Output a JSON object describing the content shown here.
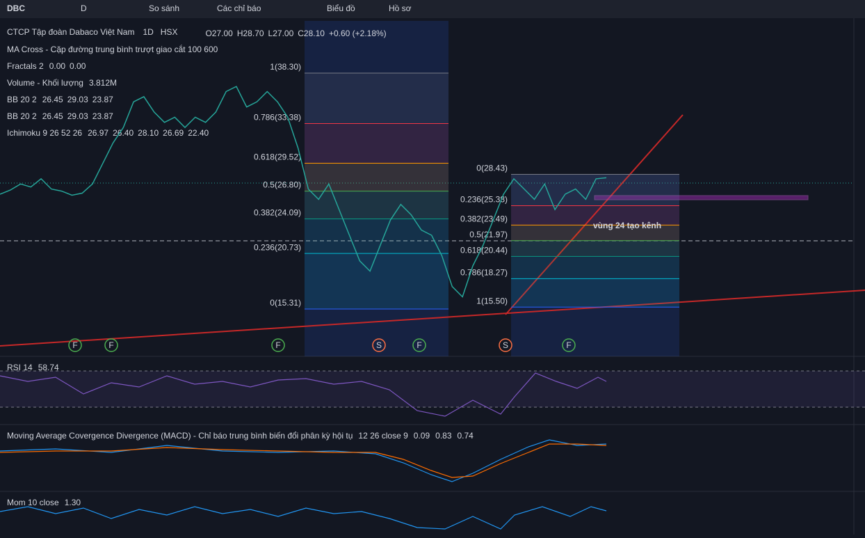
{
  "toolbar": {
    "symbol": "DBC",
    "interval": "D",
    "compare": "So sánh",
    "indicators": "Các chỉ báo",
    "chart": "Biểu đồ",
    "profile": "Hồ sơ"
  },
  "legend": {
    "name": "CTCP Tập đoàn Dabaco Việt Nam",
    "interval": "1D",
    "exchange": "HSX",
    "open": "O27.00",
    "high": "H28.70",
    "low": "L27.00",
    "close": "C28.10",
    "change": "+0.60 (+2.18%)"
  },
  "indicators": [
    {
      "name": "MA Cross - Cặp đường trung bình trượt giao cắt 100 600"
    },
    {
      "name": "Fractals 2",
      "values": [
        {
          "text": "0.00",
          "color": "#f23645"
        },
        {
          "text": "0.00",
          "color": "#089981"
        }
      ]
    },
    {
      "name": "Volume - Khối lượng",
      "values": [
        {
          "text": "3.812M",
          "color": "#26a69a"
        }
      ]
    },
    {
      "name": "BB 20 2",
      "values": [
        {
          "text": "26.45",
          "color": "#ff9800"
        },
        {
          "text": "29.03",
          "color": "#2962ff"
        },
        {
          "text": "23.87",
          "color": "#2962ff"
        }
      ]
    },
    {
      "name": "BB 20 2",
      "values": [
        {
          "text": "26.45",
          "color": "#ffeb3b"
        },
        {
          "text": "29.03",
          "color": "#2962ff"
        },
        {
          "text": "23.87",
          "color": "#2962ff"
        }
      ]
    },
    {
      "name": "Ichimoku 9 26 52 26",
      "values": [
        {
          "text": "26.97",
          "color": "#2196f3"
        },
        {
          "text": "26.40",
          "color": "#801922"
        },
        {
          "text": "28.10",
          "color": "#4caf50"
        },
        {
          "text": "26.69",
          "color": "#a5d6a7"
        },
        {
          "text": "22.40",
          "color": "#ef9a9a"
        }
      ]
    }
  ],
  "fib_left": [
    {
      "label": "1(38.30)",
      "price": 38.3
    },
    {
      "label": "0.786(33.38)",
      "price": 33.38
    },
    {
      "label": "0.618(29.52)",
      "price": 29.52
    },
    {
      "label": "0.5(26.80)",
      "price": 26.8
    },
    {
      "label": "0.382(24.09)",
      "price": 24.09
    },
    {
      "label": "0.236(20.73)",
      "price": 20.73
    },
    {
      "label": "0(15.31)",
      "price": 15.31
    }
  ],
  "fib_right": [
    {
      "label": "0(28.43)",
      "price": 28.43
    },
    {
      "label": "0.236(25.38)",
      "price": 25.38
    },
    {
      "label": "0.382(23.49)",
      "price": 23.49
    },
    {
      "label": "0.5(21.97)",
      "price": 21.97
    },
    {
      "label": "0.618(20.44)",
      "price": 20.44
    },
    {
      "label": "0.786(18.27)",
      "price": 18.27
    },
    {
      "label": "1(15.50)",
      "price": 15.5
    }
  ],
  "annotation": "vùng 24 tạo kênh",
  "markers": [
    "F",
    "F",
    "F",
    "S",
    "F",
    "S",
    "F"
  ],
  "price": {
    "closes": [
      26.5,
      26.9,
      27.5,
      27.2,
      28.0,
      27.0,
      26.8,
      26.4,
      26.6,
      27.5,
      29.5,
      31.5,
      33.0,
      35.5,
      36.0,
      34.5,
      33.5,
      34.0,
      33.0,
      34.0,
      33.5,
      34.5,
      36.5,
      37.0,
      35.0,
      35.5,
      36.5,
      35.5,
      34.0,
      31,
      27,
      26,
      27.5,
      25,
      22.5,
      20,
      19,
      21.5,
      24,
      25.5,
      24.5,
      23,
      22.5,
      20.5,
      17.5,
      16.5,
      19.5,
      21.5,
      24,
      26.5,
      28,
      27,
      26,
      27.5,
      25,
      26.5,
      27,
      26,
      28,
      28.1
    ]
  },
  "rsi": {
    "title": "RSI 14",
    "value": "58.74"
  },
  "macd": {
    "title": "Moving Average Covergence Divergence (MACD) - Chỉ báo trung bình biến đổi phân kỳ hội tụ",
    "params": "12 26 close 9",
    "values": [
      {
        "text": "0.09",
        "color": "#ffffff"
      },
      {
        "text": "0.83",
        "color": "#2196f3"
      },
      {
        "text": "0.74",
        "color": "#ff6d00"
      }
    ]
  },
  "mom": {
    "title": "Mom 10 close",
    "value": "1.30"
  }
}
